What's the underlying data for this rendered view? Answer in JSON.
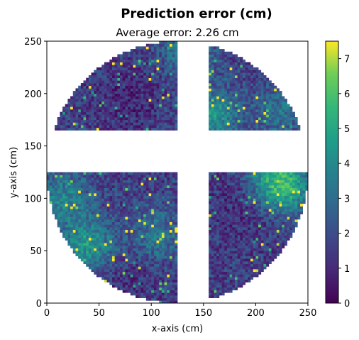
{
  "chart_data": {
    "type": "heatmap",
    "title": "Prediction error (cm)",
    "subtitle": "Average error: 2.26 cm",
    "xlabel": "x-axis (cm)",
    "ylabel": "y-axis (cm)",
    "xlim": [
      0,
      250
    ],
    "ylim": [
      0,
      250
    ],
    "x_ticks": [
      0,
      50,
      100,
      150,
      200,
      250
    ],
    "y_ticks": [
      0,
      50,
      100,
      150,
      200,
      250
    ],
    "colorbar": {
      "colormap": "viridis",
      "range": [
        0,
        7.5
      ],
      "ticks": [
        0,
        1,
        2,
        3,
        4,
        5,
        6,
        7
      ]
    },
    "average_error": 2.26,
    "units": "cm",
    "region": {
      "shape": "disk",
      "center": [
        125,
        125
      ],
      "radius": 125,
      "excluded_vertical_band_x": [
        124,
        156
      ],
      "excluded_horizontal_band_y": [
        124,
        165
      ]
    },
    "spatial_pattern": {
      "baseline_error": 1.6,
      "hotspots": [
        {
          "x": 40,
          "y": 55,
          "error": 4.5
        },
        {
          "x": 105,
          "y": 65,
          "error": 3.4
        },
        {
          "x": 230,
          "y": 110,
          "error": 4.3
        },
        {
          "x": 215,
          "y": 120,
          "error": 4.0
        },
        {
          "x": 160,
          "y": 180,
          "error": 4.2
        },
        {
          "x": 135,
          "y": 240,
          "error": 3.6
        },
        {
          "x": 15,
          "y": 100,
          "error": 3.8
        },
        {
          "x": 225,
          "y": 185,
          "error": 3.2
        }
      ],
      "low_error_zones": [
        {
          "x": 80,
          "y": 195,
          "error": 1.0
        },
        {
          "x": 190,
          "y": 95,
          "error": 1.0
        },
        {
          "x": 75,
          "y": 30,
          "error": 1.1
        }
      ]
    },
    "grid_on": false
  }
}
